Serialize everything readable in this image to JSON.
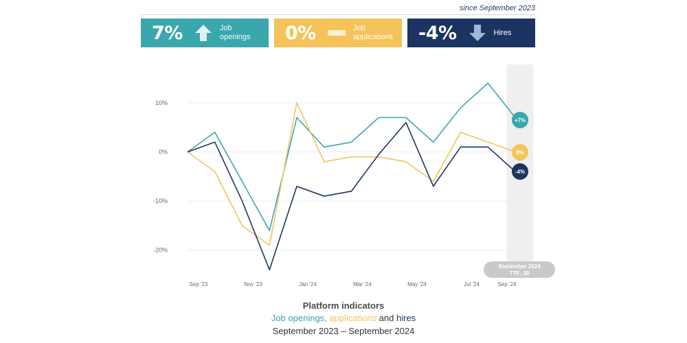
{
  "header": {
    "since": "since September 2023"
  },
  "kpis": [
    {
      "value": "7%",
      "label": "Job\nopenings",
      "direction": "up",
      "color": "#3aa6ad"
    },
    {
      "value": "0%",
      "label": "Job\napplications",
      "direction": "flat",
      "color": "#f4c35a"
    },
    {
      "value": "-4%",
      "label": "Hires",
      "direction": "down",
      "color": "#1c3461"
    }
  ],
  "chart_data": {
    "type": "line",
    "x": [
      "Sep '23",
      "Oct '23",
      "Nov '23",
      "Dec '23",
      "Jan '24",
      "Feb '24",
      "Mar '24",
      "Apr '24",
      "May '24",
      "Jun '24",
      "Jul '24",
      "Aug '24",
      "Sep '24"
    ],
    "x_tick_labels": [
      "Sep '23",
      "Nov '23",
      "Jan '24",
      "Mar '24",
      "May '24",
      "Jul '24",
      "Sep '24"
    ],
    "y_ticks": [
      10,
      0,
      -10,
      -20
    ],
    "y_tick_labels": [
      "10%",
      "0%",
      "-10%",
      "-20%"
    ],
    "ylim": [
      -24,
      14
    ],
    "series": [
      {
        "name": "Job openings",
        "color": "#3aa6ad",
        "values": [
          0,
          4,
          -6,
          -16,
          7,
          1,
          2,
          7,
          7,
          2,
          9,
          14,
          7
        ],
        "end_label": "+7%"
      },
      {
        "name": "applications",
        "color": "#f4c35a",
        "values": [
          0,
          -4,
          -15,
          -19,
          10,
          -2,
          -1,
          -1,
          -2,
          -6,
          4,
          2,
          0
        ],
        "end_label": "0%"
      },
      {
        "name": "hires",
        "color": "#1c3461",
        "values": [
          0,
          2,
          -10,
          -24,
          -7,
          -9,
          -8,
          -0.5,
          6,
          -7,
          1,
          1,
          -4
        ],
        "end_label": "-4%"
      }
    ],
    "highlight_label": "September 2024",
    "highlight_sublabel": "TTF: 38",
    "grid": true
  },
  "footer": {
    "title": "Platform indicators",
    "subtitle_parts": [
      {
        "text": "Job openings, ",
        "color": "#3aa6ad"
      },
      {
        "text": "applications",
        "color": "#f4c35a"
      },
      {
        "text": " and ",
        "color": "#333333"
      },
      {
        "text": "hires",
        "color": "#1c3461"
      }
    ],
    "date_range": "September 2023 – September 2024"
  }
}
